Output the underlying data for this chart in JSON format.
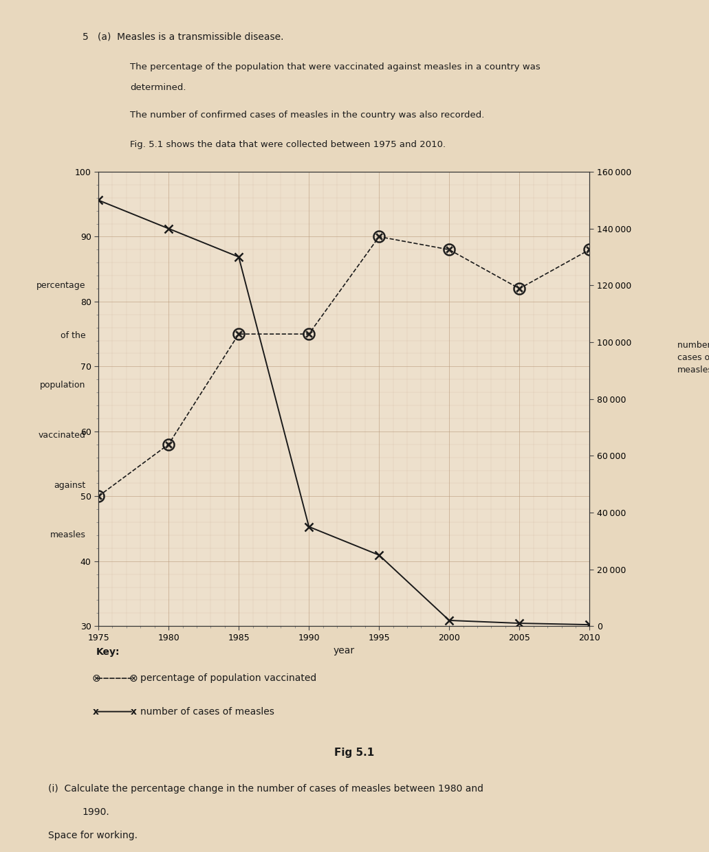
{
  "title": "Fig 5.1",
  "xlabel": "year",
  "ylabel_left_lines": [
    "percentage",
    "of the",
    "population",
    "vaccinated",
    "against",
    "measles"
  ],
  "ylabel_right": "number of\ncases of\nmeasles",
  "background_color": "#ede0cc",
  "grid_color": "#b8997a",
  "paper_color": "#e8d8be",
  "text_color": "#1a1a1a",
  "vacc_years": [
    1975,
    1980,
    1985,
    1990,
    1995,
    2000,
    2005,
    2010
  ],
  "vacc_values": [
    50,
    58,
    75,
    75,
    90,
    88,
    82,
    88
  ],
  "cases_years": [
    1975,
    1980,
    1985,
    1990,
    1995,
    2000,
    2005,
    2010
  ],
  "cases_values": [
    150000,
    140000,
    130000,
    35000,
    25000,
    2000,
    1000,
    500
  ],
  "ylim_left": [
    30,
    100
  ],
  "ylim_right": [
    0,
    160000
  ],
  "yticks_left": [
    30,
    40,
    50,
    60,
    70,
    80,
    90,
    100
  ],
  "yticks_right": [
    0,
    20000,
    40000,
    60000,
    80000,
    100000,
    120000,
    140000,
    160000
  ],
  "xticks": [
    1975,
    1980,
    1985,
    1990,
    1995,
    2000,
    2005,
    2010
  ],
  "key_vacc_label": "percentage of population vaccinated",
  "key_cases_label": "number of cases of measles",
  "line_color": "#1a1a1a"
}
